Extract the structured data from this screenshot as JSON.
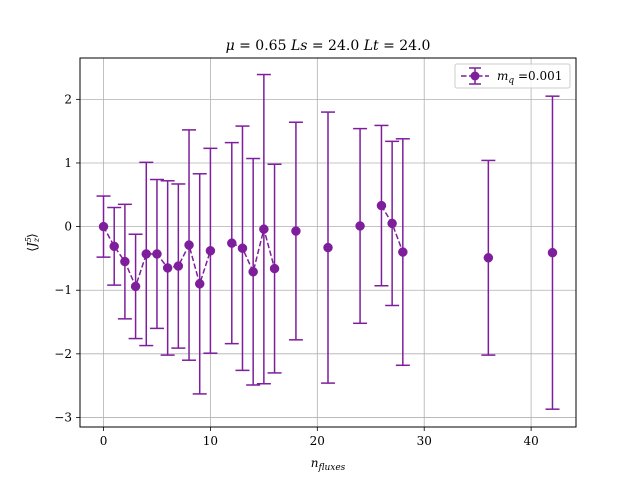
{
  "chart_data": {
    "type": "scatter",
    "title": "μ = 0.65 Ls = 24.0 Lt = 24.0",
    "xlabel": "n_fluxes",
    "ylabel": "⟨J⁵_z⟩",
    "xlim": [
      -2.2,
      44.2
    ],
    "ylim": [
      -3.15,
      2.65
    ],
    "xticks": [
      0,
      10,
      20,
      30,
      40
    ],
    "yticks": [
      -3,
      -2,
      -1,
      0,
      1,
      2
    ],
    "xtick_labels": [
      "0",
      "10",
      "20",
      "30",
      "40"
    ],
    "ytick_labels": [
      "−3",
      "−2",
      "−1",
      "0",
      "1",
      "2"
    ],
    "grid": true,
    "legend_position": "top-right",
    "series": [
      {
        "name": "m_q =0.001",
        "legend_math": "m",
        "legend_sub": "q",
        "legend_rest": " =0.001",
        "color": "#7e1e9c",
        "marker": "circle",
        "linestyle": "dashed",
        "points": [
          {
            "x": 0,
            "y": 0.0,
            "err": 0.48
          },
          {
            "x": 1,
            "y": -0.31,
            "err": 0.61
          },
          {
            "x": 2,
            "y": -0.55,
            "err": 0.9
          },
          {
            "x": 3,
            "y": -0.94,
            "err": 0.82
          },
          {
            "x": 4,
            "y": -0.43,
            "err": 1.44
          },
          {
            "x": 5,
            "y": -0.43,
            "err": 1.17
          },
          {
            "x": 6,
            "y": -0.65,
            "err": 1.37
          },
          {
            "x": 7,
            "y": -0.62,
            "err": 1.29
          },
          {
            "x": 8,
            "y": -0.29,
            "err": 1.81
          },
          {
            "x": 9,
            "y": -0.9,
            "err": 1.73
          },
          {
            "x": 10,
            "y": -0.38,
            "err": 1.61
          },
          {
            "x": 12,
            "y": -0.26,
            "err": 1.58
          },
          {
            "x": 13,
            "y": -0.34,
            "err": 1.92
          },
          {
            "x": 14,
            "y": -0.71,
            "err": 1.78
          },
          {
            "x": 15,
            "y": -0.04,
            "err": 2.43
          },
          {
            "x": 16,
            "y": -0.66,
            "err": 1.64
          },
          {
            "x": 18,
            "y": -0.07,
            "err": 1.71
          },
          {
            "x": 21,
            "y": -0.33,
            "err": 2.13
          },
          {
            "x": 24,
            "y": 0.01,
            "err": 1.53
          },
          {
            "x": 26,
            "y": 0.33,
            "err": 1.26
          },
          {
            "x": 27,
            "y": 0.05,
            "err": 1.29
          },
          {
            "x": 28,
            "y": -0.4,
            "err": 1.78
          },
          {
            "x": 36,
            "y": -0.49,
            "err": 1.53
          },
          {
            "x": 42,
            "y": -0.41,
            "err": 2.46
          }
        ],
        "dashed_segments": [
          [
            0,
            10
          ],
          [
            12,
            16
          ],
          [
            26,
            28
          ]
        ]
      }
    ]
  }
}
